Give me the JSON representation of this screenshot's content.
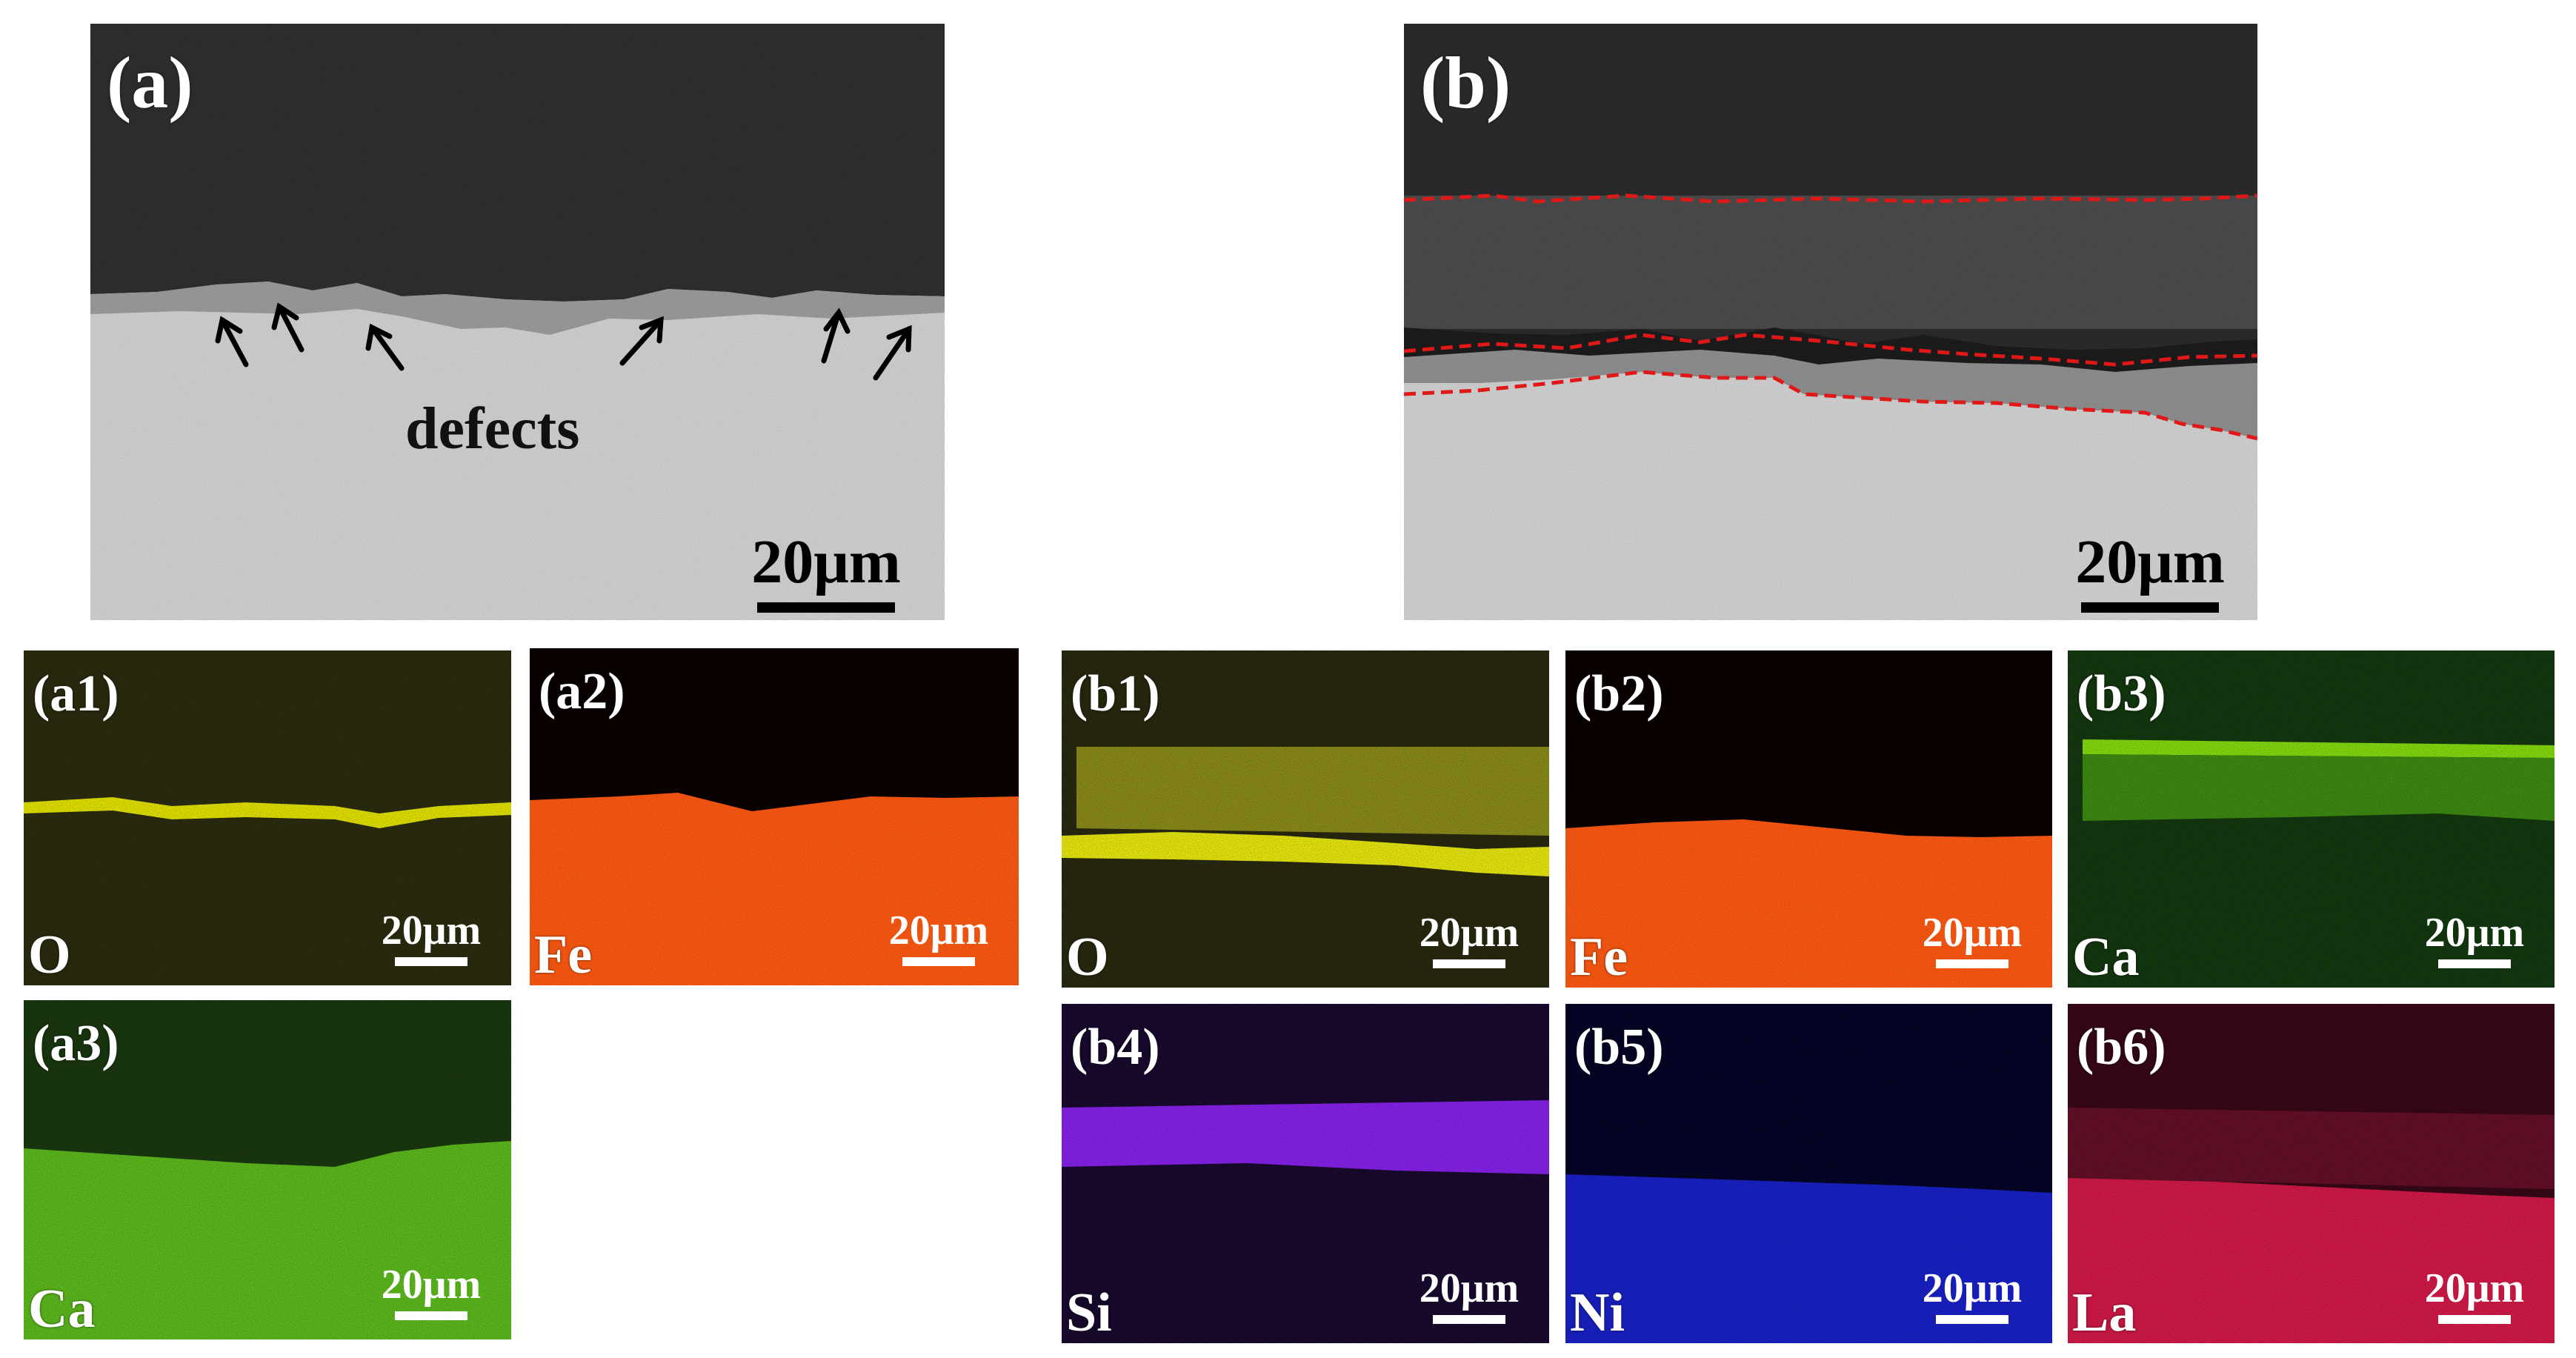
{
  "panels": {
    "a": {
      "label": "(a)",
      "annotation": "defects",
      "scale": "20μm"
    },
    "b": {
      "label": "(b)",
      "scale": "20μm"
    },
    "a1": {
      "label": "(a1)",
      "element": "O",
      "scale": "20μm",
      "color": "#e6e600"
    },
    "a2": {
      "label": "(a2)",
      "element": "Fe",
      "scale": "20μm",
      "color": "#ff5a10"
    },
    "a3": {
      "label": "(a3)",
      "element": "Ca",
      "scale": "20μm",
      "color": "#66cc22"
    },
    "b1": {
      "label": "(b1)",
      "element": "O",
      "scale": "20μm",
      "color": "#e6e600"
    },
    "b2": {
      "label": "(b2)",
      "element": "Fe",
      "scale": "20μm",
      "color": "#ff5a10"
    },
    "b3": {
      "label": "(b3)",
      "element": "Ca",
      "scale": "20μm",
      "color": "#66cc22"
    },
    "b4": {
      "label": "(b4)",
      "element": "Si",
      "scale": "20μm",
      "color": "#8822ee"
    },
    "b5": {
      "label": "(b5)",
      "element": "Ni",
      "scale": "20μm",
      "color": "#1a1aee"
    },
    "b6": {
      "label": "(b6)",
      "element": "La",
      "scale": "20μm",
      "color": "#e0204a"
    }
  }
}
